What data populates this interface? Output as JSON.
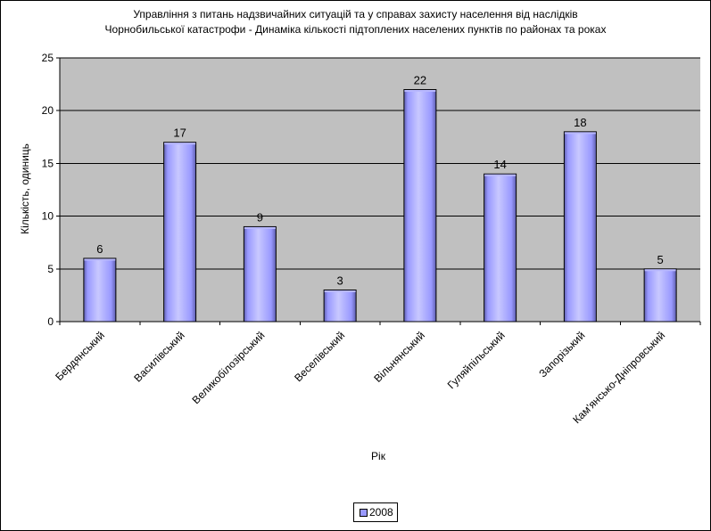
{
  "colors": {
    "plot_background": "#c0c0c0",
    "bar_fill": "#9999ff",
    "bar_highlight": "#c8c8ff",
    "bar_shadow": "#5f5fb0",
    "bar_top": "#b8b8ff",
    "gridline": "#000000"
  },
  "legend": {
    "entries": [
      {
        "label": "2008",
        "color": "#9999ff"
      }
    ]
  },
  "chart_data": {
    "type": "bar",
    "title": "Управління з питань надзвичайних ситуацій та у справах захисту населення від наслідків Чорнобильської катастрофи - Динаміка кількості підтоплених населених пунктів по районах та роках",
    "title_lines": [
      "Управління з питань надзвичайних ситуацій та у справах захисту населення від наслідків",
      "Чорнобильської катастрофи - Динаміка кількості підтоплених населених пунктів по районах та роках"
    ],
    "xlabel": "Рік",
    "ylabel": "Кількість, одиниць",
    "categories": [
      "Бердянський",
      "Василівський",
      "Великобілозірський",
      "Веселівський",
      "Вільнянський",
      "Гуляйпільський",
      "Запорізький",
      "Кам'янсько-Дніпровський"
    ],
    "series": [
      {
        "name": "2008",
        "values": [
          6,
          17,
          9,
          3,
          22,
          14,
          18,
          5
        ]
      }
    ],
    "ylim": [
      0,
      25
    ],
    "yticks": [
      0,
      5,
      10,
      15,
      20,
      25
    ],
    "grid": true,
    "legend_position": "bottom"
  }
}
